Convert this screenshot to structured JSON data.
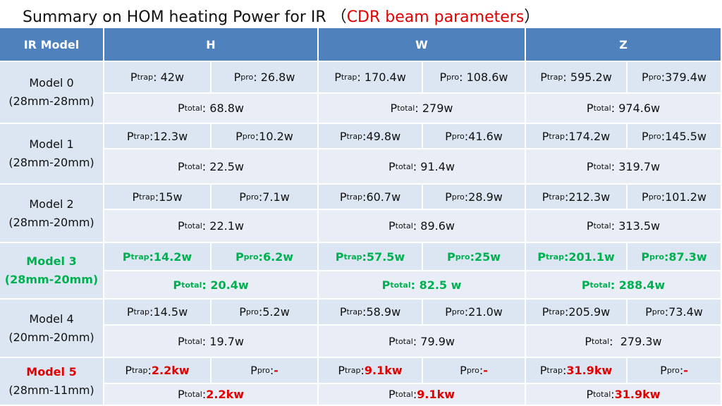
{
  "header": {
    "title": [
      "Summary on HOM heating Power for IR ",
      "（",
      "CDR beam parameters",
      "）"
    ],
    "title_accent": "#e00000"
  },
  "table": {
    "header_color": "#4f81bd",
    "columns": [
      "IR Model",
      "H",
      "W",
      "Z"
    ],
    "rows": [
      {
        "label": "Model 0",
        "sublabel": "(28mm-28mm)",
        "cells": [
          {
            "sym": "P",
            "sub": "trap",
            "sep": ": ",
            "val": "42w"
          },
          {
            "sym": "P",
            "sub": "pro",
            "sep": ": ",
            "val": "26.8w"
          },
          {
            "sym": "P",
            "sub": "trap",
            "sep": ": ",
            "val": "170.4w"
          },
          {
            "sym": "P",
            "sub": "pro",
            "sep": ": ",
            "val": "108.6w"
          },
          {
            "sym": "P",
            "sub": "trap",
            "sep": ": ",
            "val": "595.2w"
          },
          {
            "sym": "P",
            "sub": "pro",
            "sep": ":",
            "val": "379.4w"
          }
        ],
        "totals": [
          {
            "sym": "P",
            "sub": "total",
            "sep": ": ",
            "val": "68.8w"
          },
          {
            "sym": "P",
            "sub": "total",
            "sep": ": ",
            "val": "279w"
          },
          {
            "sym": "P",
            "sub": "total",
            "sep": ": ",
            "val": "974.6w"
          }
        ]
      },
      {
        "label": "Model 1",
        "sublabel": "(28mm-20mm)",
        "cells": [
          {
            "sym": "P",
            "sub": "trap",
            "sep": ":",
            "val": "12.3w"
          },
          {
            "sym": "P",
            "sub": "pro",
            "sep": ":",
            "val": "10.2w"
          },
          {
            "sym": "P",
            "sub": "trap",
            "sep": ":",
            "val": "49.8w"
          },
          {
            "sym": "P",
            "sub": "pro",
            "sep": ":",
            "val": "41.6w"
          },
          {
            "sym": "P",
            "sub": "trap",
            "sep": ":",
            "val": "174.2w"
          },
          {
            "sym": "P",
            "sub": "pro",
            "sep": ":",
            "val": "145.5w"
          }
        ],
        "totals": [
          {
            "sym": "P",
            "sub": "total",
            "sep": ": ",
            "val": "22.5w"
          },
          {
            "sym": "P",
            "sub": "total",
            "sep": ": ",
            "val": "91.4w"
          },
          {
            "sym": "P",
            "sub": "total",
            "sep": ": ",
            "val": "319.7w"
          }
        ]
      },
      {
        "label": "Model 2",
        "sublabel": "(28mm-20mm)",
        "cells": [
          {
            "sym": "P",
            "sub": "trap",
            "sep": ":",
            "val": "15w"
          },
          {
            "sym": "P",
            "sub": "pro",
            "sep": ":",
            "val": "7.1w"
          },
          {
            "sym": "P",
            "sub": "trap",
            "sep": ":",
            "val": "60.7w"
          },
          {
            "sym": "P",
            "sub": "pro",
            "sep": ":",
            "val": "28.9w"
          },
          {
            "sym": "P",
            "sub": "trap",
            "sep": ":",
            "val": "212.3w"
          },
          {
            "sym": "P",
            "sub": "pro",
            "sep": ":",
            "val": "101.2w"
          }
        ],
        "totals": [
          {
            "sym": "P",
            "sub": "total",
            "sep": ": ",
            "val": "22.1w"
          },
          {
            "sym": "P",
            "sub": "total",
            "sep": ": ",
            "val": "89.6w"
          },
          {
            "sym": "P",
            "sub": "total",
            "sep": ": ",
            "val": "313.5w"
          }
        ]
      },
      {
        "label": "Model 3",
        "sublabel": "(28mm-20mm)",
        "color": "#00b050",
        "cells": [
          {
            "sym": "P",
            "sub": "trap",
            "sep": ":",
            "val": "14.2w"
          },
          {
            "sym": "P",
            "sub": "pro",
            "sep": ":",
            "val": "6.2w"
          },
          {
            "sym": "P",
            "sub": "trap",
            "sep": ":",
            "val": "57.5w"
          },
          {
            "sym": "P",
            "sub": "pro",
            "sep": ":",
            "val": "25w"
          },
          {
            "sym": "P",
            "sub": "trap",
            "sep": ":",
            "val": "201.1w"
          },
          {
            "sym": "P",
            "sub": "pro",
            "sep": ":",
            "val": "87.3w"
          }
        ],
        "totals": [
          {
            "sym": "P",
            "sub": "total",
            "sep": ": ",
            "val": "20.4w"
          },
          {
            "sym": "P",
            "sub": "total",
            "sep": ": ",
            "val": "82.5 w"
          },
          {
            "sym": "P",
            "sub": "total",
            "sep": ": ",
            "val": "288.4w"
          }
        ]
      },
      {
        "label": "Model 4",
        "sublabel": "(20mm-20mm)",
        "cells": [
          {
            "sym": "P",
            "sub": "trap",
            "sep": ":",
            "val": "14.5w"
          },
          {
            "sym": "P",
            "sub": "pro",
            "sep": ":",
            "val": "5.2w"
          },
          {
            "sym": "P",
            "sub": "trap",
            "sep": ":",
            "val": "58.9w"
          },
          {
            "sym": "P",
            "sub": "pro",
            "sep": ":",
            "val": "21.0w"
          },
          {
            "sym": "P",
            "sub": "trap",
            "sep": ":",
            "val": "205.9w"
          },
          {
            "sym": "P",
            "sub": "pro",
            "sep": ":",
            "val": "73.4w"
          }
        ],
        "totals": [
          {
            "sym": "P",
            "sub": "total",
            "sep": ": ",
            "val": "19.7w"
          },
          {
            "sym": "P",
            "sub": "total",
            "sep": ": ",
            "val": "79.9w"
          },
          {
            "sym": "P",
            "sub": "total",
            "sep": ":  ",
            "val": "279.3w"
          }
        ]
      },
      {
        "label": "Model 5",
        "sublabel": "(28mm-11mm)",
        "accent": "#e00000",
        "cells": [
          {
            "sym": "P",
            "sub": "trap",
            "sep": ":",
            "val": "2.2kw"
          },
          {
            "sym": "P",
            "sub": "pro",
            "sep": ":",
            "val": "-"
          },
          {
            "sym": "P",
            "sub": "trap",
            "sep": ":",
            "val": "9.1kw"
          },
          {
            "sym": "P",
            "sub": "pro",
            "sep": ":",
            "val": "-"
          },
          {
            "sym": "P",
            "sub": "trap",
            "sep": ":",
            "val": "31.9kw"
          },
          {
            "sym": "P",
            "sub": "pro",
            "sep": ":",
            "val": "-"
          }
        ],
        "totals": [
          {
            "sym": "P",
            "sub": "total",
            "sep": ":",
            "val": "2.2kw"
          },
          {
            "sym": "P",
            "sub": "total",
            "sep": ":",
            "val": "9.1kw"
          },
          {
            "sym": "P",
            "sub": "total",
            "sep": ":",
            "val": "31.9kw"
          }
        ]
      }
    ]
  }
}
